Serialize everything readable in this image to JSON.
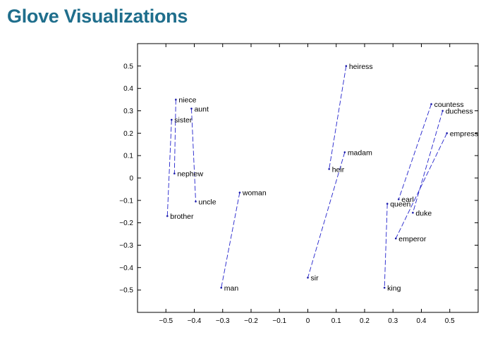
{
  "page": {
    "title": "Glove Visualizations"
  },
  "chart_data": {
    "type": "scatter",
    "title": "",
    "xlabel": "",
    "ylabel": "",
    "xlim": [
      -0.6,
      0.6
    ],
    "ylim": [
      -0.6,
      0.6
    ],
    "grid": false,
    "legend": "none",
    "xticks": [
      -0.5,
      -0.4,
      -0.3,
      -0.2,
      -0.1,
      0,
      0.1,
      0.2,
      0.3,
      0.4,
      0.5
    ],
    "yticks": [
      -0.5,
      -0.4,
      -0.3,
      -0.2,
      -0.1,
      0,
      0.1,
      0.2,
      0.3,
      0.4,
      0.5
    ],
    "tick_labels_x": [
      "−0.5",
      "−0.4",
      "−0.3",
      "−0.2",
      "−0.1",
      "0",
      "0.1",
      "0.2",
      "0.3",
      "0.4",
      "0.5"
    ],
    "tick_labels_y": [
      "−0.5",
      "−0.4",
      "−0.3",
      "−0.2",
      "−0.1",
      "0",
      "0.1",
      "0.2",
      "0.3",
      "0.4",
      "0.5"
    ],
    "points": [
      {
        "label": "niece",
        "x": -0.465,
        "y": 0.35
      },
      {
        "label": "aunt",
        "x": -0.41,
        "y": 0.31
      },
      {
        "label": "sister",
        "x": -0.48,
        "y": 0.26
      },
      {
        "label": "nephew",
        "x": -0.47,
        "y": 0.02
      },
      {
        "label": "uncle",
        "x": -0.395,
        "y": -0.105
      },
      {
        "label": "brother",
        "x": -0.495,
        "y": -0.17
      },
      {
        "label": "woman",
        "x": -0.24,
        "y": -0.065
      },
      {
        "label": "man",
        "x": -0.305,
        "y": -0.49
      },
      {
        "label": "heiress",
        "x": 0.135,
        "y": 0.5
      },
      {
        "label": "madam",
        "x": 0.13,
        "y": 0.115
      },
      {
        "label": "heir",
        "x": 0.075,
        "y": 0.04
      },
      {
        "label": "sir",
        "x": 0.0,
        "y": -0.445
      },
      {
        "label": "countess",
        "x": 0.435,
        "y": 0.33
      },
      {
        "label": "duchess",
        "x": 0.475,
        "y": 0.3
      },
      {
        "label": "empress",
        "x": 0.49,
        "y": 0.2
      },
      {
        "label": "earl",
        "x": 0.32,
        "y": -0.095
      },
      {
        "label": "queen",
        "x": 0.28,
        "y": -0.115
      },
      {
        "label": "duke",
        "x": 0.37,
        "y": -0.155
      },
      {
        "label": "emperor",
        "x": 0.31,
        "y": -0.27
      },
      {
        "label": "king",
        "x": 0.27,
        "y": -0.49
      }
    ],
    "segments": [
      [
        "niece",
        "nephew"
      ],
      [
        "aunt",
        "uncle"
      ],
      [
        "sister",
        "brother"
      ],
      [
        "woman",
        "man"
      ],
      [
        "heiress",
        "heir"
      ],
      [
        "madam",
        "sir"
      ],
      [
        "countess",
        "earl"
      ],
      [
        "duchess",
        "duke"
      ],
      [
        "empress",
        "emperor"
      ],
      [
        "queen",
        "king"
      ]
    ],
    "colors": {
      "line": "#2222cc",
      "marker": "#1a1aaa",
      "axis": "#000000"
    }
  }
}
